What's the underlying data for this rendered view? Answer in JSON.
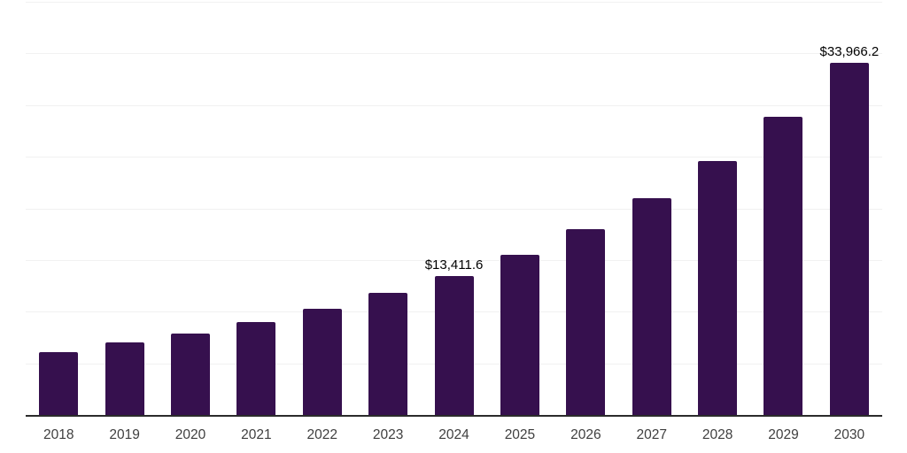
{
  "chart_data": {
    "type": "bar",
    "title": "",
    "xlabel": "",
    "ylabel": "",
    "categories": [
      "2018",
      "2019",
      "2020",
      "2021",
      "2022",
      "2023",
      "2024",
      "2025",
      "2026",
      "2027",
      "2028",
      "2029",
      "2030"
    ],
    "values": [
      6035,
      6970,
      7820,
      8930,
      10200,
      11730,
      13411.6,
      15470,
      17940,
      20910,
      24480,
      28730,
      33966.2
    ],
    "value_labels": [
      "",
      "",
      "",
      "",
      "",
      "",
      "$13,411.6",
      "",
      "",
      "",
      "",
      "",
      "$33,966.2"
    ],
    "labeled_points": [
      {
        "category": "2024",
        "label": "$13,411.6",
        "value": 13411.6
      },
      {
        "category": "2030",
        "label": "$33,966.2",
        "value": 33966.2
      }
    ],
    "ylim": [
      0,
      40000
    ],
    "grid": {
      "horizontal": true,
      "step": 5000,
      "intervals": 8
    },
    "legend": "none",
    "y_axis_tick_labels_visible": false
  },
  "colors": {
    "bar": "#36104e",
    "gridline": "#f1f1f1",
    "axis_line": "#2b2b2b",
    "tick_label": "#3f3f3f",
    "value_label": "#000000",
    "background": "#ffffff"
  }
}
